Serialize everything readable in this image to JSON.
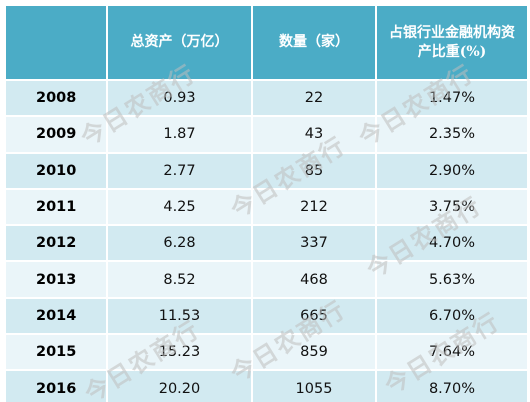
{
  "table": {
    "headers": [
      "",
      "总资产（万亿）",
      "数量（家）",
      "占银行业金融机构资产比重(%)"
    ],
    "rows": [
      [
        "2008",
        "0.93",
        "22",
        "1.47%"
      ],
      [
        "2009",
        "1.87",
        "43",
        "2.35%"
      ],
      [
        "2010",
        "2.77",
        "85",
        "2.90%"
      ],
      [
        "2011",
        "4.25",
        "212",
        "3.75%"
      ],
      [
        "2012",
        "6.28",
        "337",
        "4.70%"
      ],
      [
        "2013",
        "8.52",
        "468",
        "5.63%"
      ],
      [
        "2014",
        "11.53",
        "665",
        "6.70%"
      ],
      [
        "2015",
        "15.23",
        "859",
        "7.64%"
      ],
      [
        "2016",
        "20.20",
        "1055",
        "8.70%"
      ]
    ]
  },
  "watermark": {
    "text": "今日农商行"
  },
  "colors": {
    "header_bg": "#4bacc6",
    "row_dark": "#d2eaf1",
    "row_light": "#eaf5f9"
  }
}
